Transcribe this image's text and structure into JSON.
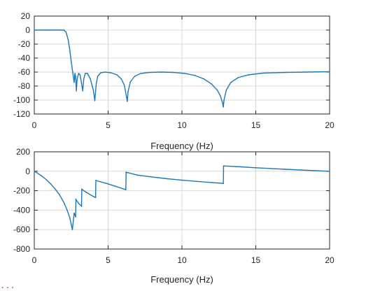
{
  "colors": {
    "series": "#1f77b4",
    "footer": "#d83b01"
  },
  "footer_text": "...",
  "chart_data": [
    {
      "type": "line",
      "title": "",
      "xlabel": "Frequency (Hz)",
      "ylabel": "",
      "xlim": [
        0,
        20
      ],
      "ylim": [
        -120,
        20
      ],
      "xticks": [
        0,
        5,
        10,
        15,
        20
      ],
      "yticks": [
        20,
        0,
        -20,
        -40,
        -60,
        -80,
        -100,
        -120
      ],
      "grid": true,
      "series": [
        {
          "x": [
            0,
            1,
            2,
            2.15,
            2.3,
            2.4,
            2.5,
            2.6,
            2.7,
            2.75,
            2.8,
            2.85,
            2.9,
            3.0,
            3.1,
            3.2,
            3.28,
            3.35,
            3.45,
            3.6,
            3.8,
            4.0,
            4.1,
            4.2,
            4.3,
            4.5,
            4.8,
            5.2,
            5.6,
            5.9,
            6.1,
            6.25,
            6.3,
            6.35,
            6.5,
            6.8,
            7.2,
            7.8,
            8.6,
            9.4,
            10.2,
            10.9,
            11.5,
            12.0,
            12.4,
            12.6,
            12.75,
            12.8,
            12.85,
            13.0,
            13.3,
            13.8,
            14.5,
            15.5,
            17.0,
            18.5,
            20.0
          ],
          "y": [
            0,
            0,
            0,
            -3,
            -14,
            -28,
            -45,
            -60,
            -75,
            -62,
            -66,
            -87,
            -70,
            -62,
            -64,
            -76,
            -87,
            -70,
            -62,
            -62,
            -70,
            -86,
            -101,
            -76,
            -66,
            -61,
            -60,
            -61,
            -64,
            -70,
            -79,
            -96,
            -102,
            -88,
            -74,
            -66,
            -62,
            -60.5,
            -60,
            -60.5,
            -62,
            -65,
            -70,
            -77,
            -86,
            -94,
            -104,
            -110,
            -100,
            -86,
            -75,
            -68,
            -64,
            -61.5,
            -60.5,
            -60,
            -59.5
          ]
        }
      ]
    },
    {
      "type": "line",
      "title": "",
      "xlabel": "Frequency (Hz)",
      "ylabel": "",
      "xlim": [
        0,
        20
      ],
      "ylim": [
        -800,
        200
      ],
      "xticks": [
        0,
        5,
        10,
        15,
        20
      ],
      "yticks": [
        200,
        0,
        -200,
        -400,
        -600,
        -800
      ],
      "grid": true,
      "series": [
        {
          "x": [
            0,
            0.2,
            0.5,
            0.8,
            1.1,
            1.4,
            1.7,
            2.0,
            2.2,
            2.4,
            2.58,
            2.6,
            2.7,
            2.8,
            2.82,
            3.0,
            3.2,
            3.22,
            3.5,
            4.0,
            4.15,
            4.17,
            5.0,
            5.5,
            6.2,
            6.22,
            7.0,
            8.0,
            9.0,
            10.0,
            11.0,
            12.0,
            12.8,
            12.82,
            14.0,
            15.0,
            16.0,
            17.0,
            18.0,
            19.0,
            20.0
          ],
          "y": [
            0,
            -18,
            -48,
            -85,
            -128,
            -180,
            -240,
            -320,
            -390,
            -475,
            -600,
            -570,
            -430,
            -470,
            -290,
            -330,
            -360,
            -185,
            -215,
            -260,
            -270,
            -95,
            -130,
            -155,
            -190,
            -10,
            -40,
            -60,
            -77,
            -92,
            -104,
            -116,
            -125,
            55,
            45,
            36,
            28,
            20,
            13,
            6,
            0
          ]
        }
      ]
    }
  ]
}
